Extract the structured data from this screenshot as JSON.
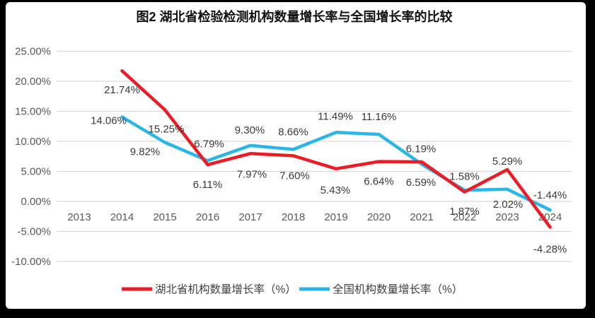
{
  "title": "图2  湖北省检验检测机构数量增长率与全国增长率的比较",
  "colors": {
    "hubei_line": "#ed1c24",
    "national_line": "#29b6ea",
    "gridline": "#d9d9d9",
    "axis_text": "#595959",
    "data_label_text": "#3a3a3a",
    "frame": "#000000",
    "background": "#ffffff"
  },
  "chart_data": {
    "type": "line",
    "title": "图2  湖北省检验检测机构数量增长率与全国增长率的比较",
    "x": [
      "2013",
      "2014",
      "2015",
      "2016",
      "2017",
      "2018",
      "2019",
      "2020",
      "2021",
      "2022",
      "2023",
      "2024"
    ],
    "series": [
      {
        "name": "湖北省机构数量增长率（%）",
        "color_key": "hubei_line",
        "values": [
          null,
          21.74,
          15.25,
          6.11,
          7.97,
          7.6,
          5.43,
          6.64,
          6.59,
          1.58,
          5.29,
          -4.28
        ],
        "labels": [
          "",
          "21.74%",
          "15.25%",
          "6.11%",
          "7.97%",
          "7.60%",
          "5.43%",
          "6.64%",
          "6.59%",
          "1.58%",
          "5.29%",
          "-4.28%"
        ],
        "label_offsets": [
          [
            0,
            0
          ],
          [
            0,
            27
          ],
          [
            2,
            27
          ],
          [
            0,
            28
          ],
          [
            2,
            29
          ],
          [
            2,
            28
          ],
          [
            -1,
            30
          ],
          [
            0,
            28
          ],
          [
            -1,
            29
          ],
          [
            0,
            -22
          ],
          [
            0,
            -12
          ],
          [
            0,
            31
          ]
        ]
      },
      {
        "name": "全国机构数量增长率（%）",
        "color_key": "national_line",
        "values": [
          null,
          14.06,
          9.82,
          6.79,
          9.3,
          8.66,
          11.49,
          11.16,
          6.19,
          1.87,
          2.02,
          -1.44
        ],
        "labels": [
          "",
          "14.06%",
          "9.82%",
          "6.79%",
          "9.30%",
          "8.66%",
          "11.49%",
          "11.16%",
          "6.19%",
          "1.87%",
          "2.02%",
          "-1.44%"
        ],
        "label_offsets": [
          [
            0,
            0
          ],
          [
            -19,
            5
          ],
          [
            -28,
            13
          ],
          [
            2,
            -24
          ],
          [
            -1,
            -22
          ],
          [
            0,
            -25
          ],
          [
            -1,
            -23
          ],
          [
            0,
            -25
          ],
          [
            -1,
            -22
          ],
          [
            0,
            30
          ],
          [
            1,
            21
          ],
          [
            0,
            -21
          ]
        ]
      }
    ],
    "y_ticks": [
      "25.00%",
      "20.00%",
      "15.00%",
      "10.00%",
      "5.00%",
      "0.00%",
      "-5.00%",
      "-10.00%"
    ],
    "y_tick_values": [
      25,
      20,
      15,
      10,
      5,
      0,
      -5,
      -10
    ],
    "ylim": [
      -10,
      25
    ],
    "grid": true,
    "legend_position": "bottom"
  }
}
